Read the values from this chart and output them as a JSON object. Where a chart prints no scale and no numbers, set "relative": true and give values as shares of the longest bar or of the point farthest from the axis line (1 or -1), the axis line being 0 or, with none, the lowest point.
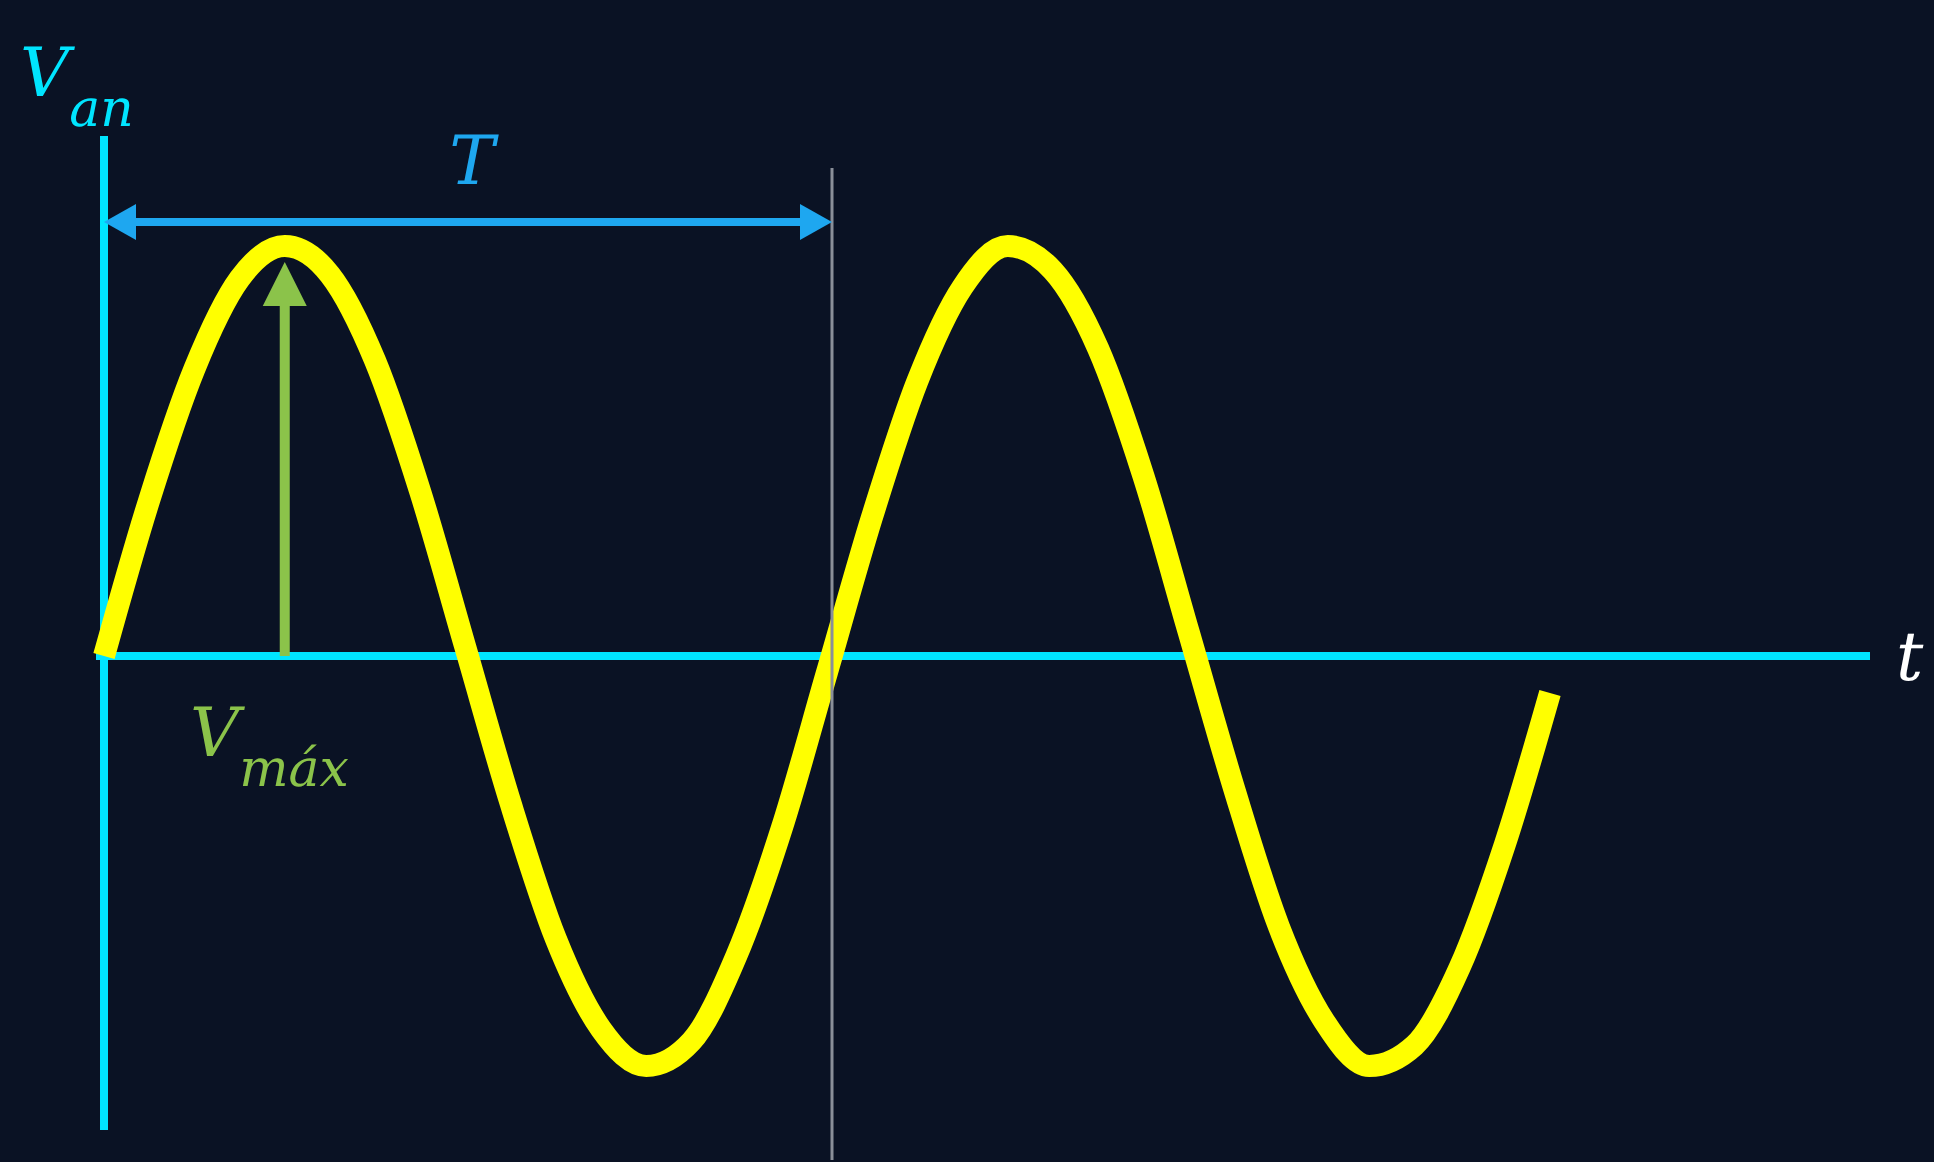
{
  "chart_data": {
    "type": "line",
    "relative": true,
    "xlabel": "t",
    "ylabel": "V$_{an}$",
    "annotations": [
      "T",
      "V$_{máx}$"
    ],
    "categories": [
      null,
      null,
      null,
      null,
      null,
      null,
      null,
      null,
      null,
      null,
      null,
      null,
      null,
      null,
      null,
      null,
      null,
      null,
      null,
      null,
      null,
      null,
      null,
      null,
      null,
      null,
      null,
      null,
      null,
      null,
      null,
      null,
      null
    ],
    "series": [
      {
        "color": "#ffff00",
        "values": [
          0,
          0.38,
          0.7,
          0.92,
          1.0,
          0.93,
          0.72,
          0.4,
          0.02,
          -0.36,
          -0.69,
          -0.91,
          -1.0,
          -0.94,
          -0.73,
          -0.42,
          -0.04,
          0.34,
          0.67,
          0.9,
          1.0,
          0.94,
          0.75,
          0.44,
          0.06,
          -0.32,
          -0.66,
          -0.89,
          -1.0,
          -0.95,
          -0.76,
          -0.46,
          -0.09
        ]
      }
    ],
    "ref_lines": [
      {
        "axis": "y",
        "value": 0,
        "color": "#00e5ff"
      }
    ],
    "marker": "none",
    "line_style": "solid"
  }
}
